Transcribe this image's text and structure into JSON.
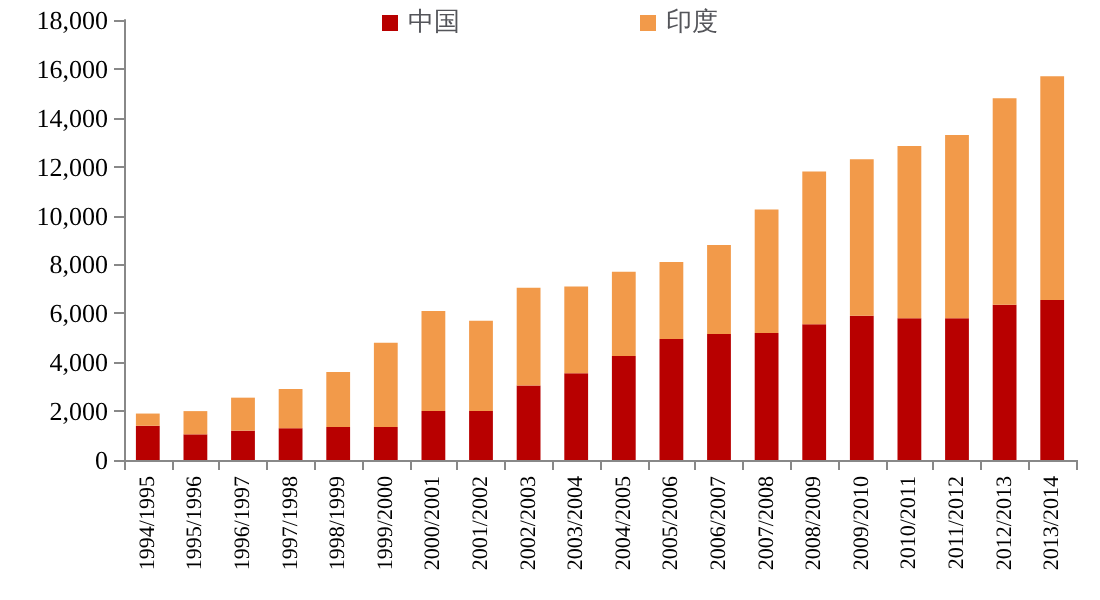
{
  "chart_data": {
    "type": "bar",
    "stacked": true,
    "categories": [
      "1994/1995",
      "1995/1996",
      "1996/1997",
      "1997/1998",
      "1998/1999",
      "1999/2000",
      "2000/2001",
      "2001/2002",
      "2002/2003",
      "2003/2004",
      "2004/2005",
      "2005/2006",
      "2006/2007",
      "2007/2008",
      "2008/2009",
      "2009/2010",
      "2010/2011",
      "2011/2012",
      "2012/2013",
      "2013/2014"
    ],
    "series": [
      {
        "name": "中国",
        "color": "#b80000",
        "values": [
          1400,
          1050,
          1200,
          1300,
          1350,
          1350,
          2000,
          2000,
          3050,
          3550,
          4250,
          4950,
          5150,
          5200,
          5550,
          5900,
          5800,
          5800,
          6350,
          6550
        ]
      },
      {
        "name": "印度",
        "color": "#f29a4a",
        "values": [
          500,
          950,
          1350,
          1600,
          2250,
          3450,
          4100,
          3700,
          4000,
          3550,
          3450,
          3150,
          3650,
          5050,
          6250,
          6400,
          7050,
          7500,
          8450,
          9150
        ]
      }
    ],
    "ylim": [
      0,
      18000
    ],
    "yticks": [
      {
        "value": 0,
        "label": "0"
      },
      {
        "value": 2000,
        "label": "2,000"
      },
      {
        "value": 4000,
        "label": "4,000"
      },
      {
        "value": 6000,
        "label": "6,000"
      },
      {
        "value": 8000,
        "label": "8,000"
      },
      {
        "value": 10000,
        "label": "10,000"
      },
      {
        "value": 12000,
        "label": "12,000"
      },
      {
        "value": 14000,
        "label": "14,000"
      },
      {
        "value": 16000,
        "label": "16,000"
      },
      {
        "value": 18000,
        "label": "18,000"
      }
    ],
    "grid": false,
    "legend": "top"
  }
}
